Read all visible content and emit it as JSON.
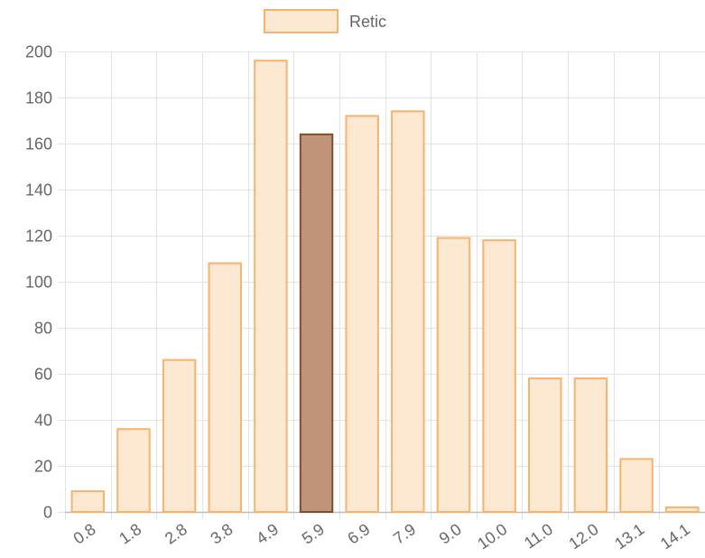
{
  "chart_data": {
    "type": "bar",
    "categories": [
      "0.8",
      "1.8",
      "2.8",
      "3.8",
      "4.9",
      "5.9",
      "6.9",
      "7.9",
      "9.0",
      "10.0",
      "11.0",
      "12.0",
      "13.1",
      "14.1"
    ],
    "series": [
      {
        "name": "Retic",
        "values": [
          9,
          36,
          66,
          108,
          196,
          164,
          172,
          174,
          119,
          118,
          58,
          58,
          23,
          2
        ]
      }
    ],
    "highlight_index": 5,
    "ylim": [
      0,
      200
    ],
    "y_ticks": [
      0,
      20,
      40,
      60,
      80,
      100,
      120,
      140,
      160,
      180,
      200
    ],
    "grid": true,
    "legend_position": "top-center",
    "colors": {
      "bar_fill": "#fde8d2",
      "bar_stroke": "#f7b26e",
      "highlight_fill": "#c09479",
      "highlight_stroke": "#7c4c33",
      "grid": "#e3e3e3",
      "axis": "#bdbdbd",
      "text": "#666666"
    }
  }
}
